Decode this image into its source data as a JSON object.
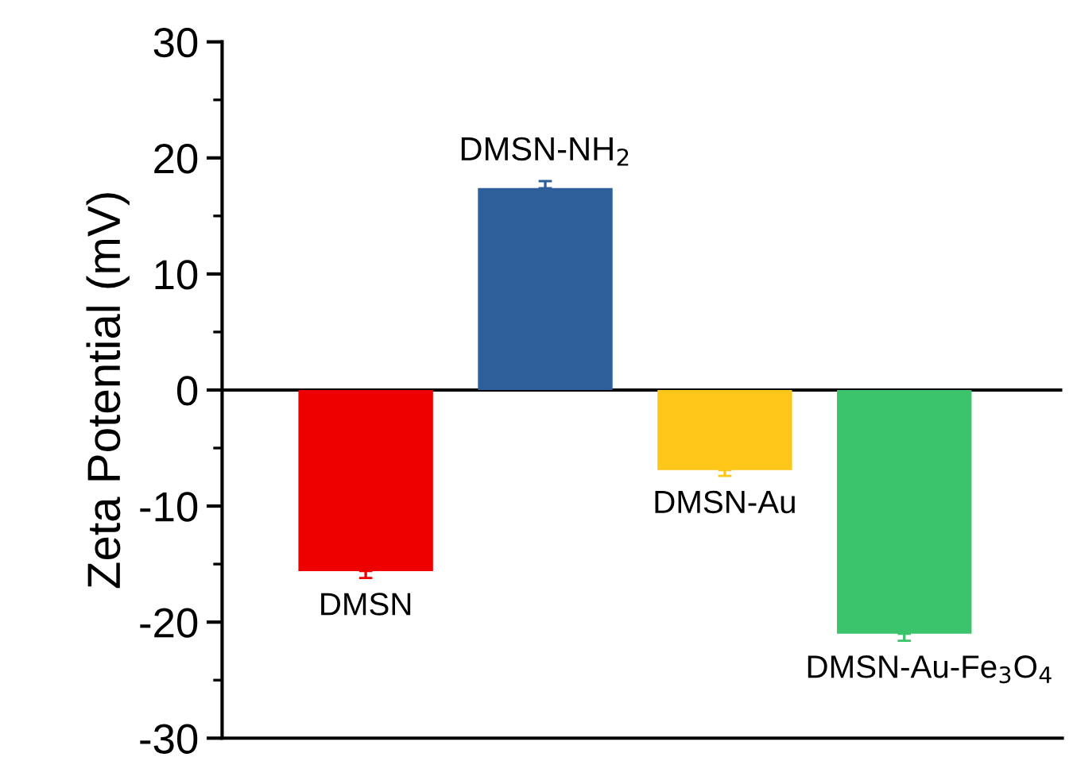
{
  "chart_data": {
    "type": "bar",
    "ylabel": "Zeta Potential (mV)",
    "categories": [
      "DMSN",
      "DMSN-NH$_{2}$",
      "DMSN-Au",
      "DMSN-Au-Fe$_{3}$O$_{4}$"
    ],
    "values": [
      -15.6,
      17.4,
      -6.9,
      -21.0
    ],
    "errors": [
      0.6,
      0.6,
      0.5,
      0.6
    ],
    "colors": [
      "#ee0000",
      "#2e5f9a",
      "#ffc61a",
      "#3cc46c"
    ],
    "ylim": [
      -30,
      30
    ],
    "yticks": [
      -30,
      -20,
      -10,
      0,
      10,
      20,
      30
    ],
    "ref_lines": [
      {
        "axis": "y",
        "value": 0,
        "color": "#000000"
      }
    ],
    "tick_labels": "y",
    "grid": false,
    "legend": false
  }
}
